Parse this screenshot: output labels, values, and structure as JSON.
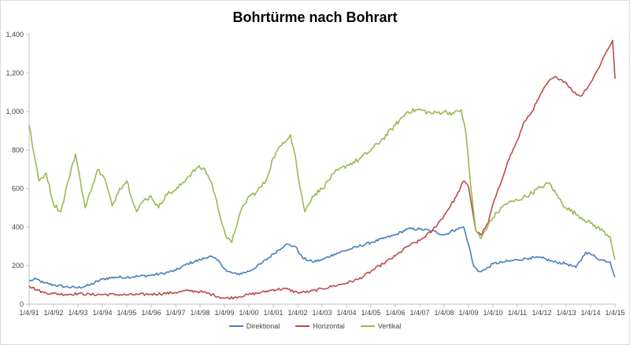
{
  "chart_data": {
    "type": "line",
    "title": "Bohrtürme nach Bohrart",
    "xlabel": "",
    "ylabel": "",
    "ylim": [
      0,
      1400
    ],
    "xlim": [
      "1991-01-04",
      "2015-01-04"
    ],
    "yticks": [
      {
        "value": 0,
        "label": "0"
      },
      {
        "value": 200,
        "label": "200"
      },
      {
        "value": 400,
        "label": "400"
      },
      {
        "value": 600,
        "label": "600"
      },
      {
        "value": 800,
        "label": "800"
      },
      {
        "value": 1000,
        "label": "1,000"
      },
      {
        "value": 1200,
        "label": "1,200"
      },
      {
        "value": 1400,
        "label": "1,400"
      }
    ],
    "xticks": [
      "1/4/91",
      "1/4/92",
      "1/4/93",
      "1/4/94",
      "1/4/95",
      "1/4/96",
      "1/4/97",
      "1/4/98",
      "1/4/99",
      "1/4/00",
      "1/4/01",
      "1/4/02",
      "1/4/03",
      "1/4/04",
      "1/4/05",
      "1/4/06",
      "1/4/07",
      "1/4/08",
      "1/4/09",
      "1/4/10",
      "1/4/11",
      "1/4/12",
      "1/4/13",
      "1/4/14",
      "1/4/15"
    ],
    "grid": false,
    "legend_position": "bottom",
    "series": [
      {
        "name": "Direktional",
        "color": "#4a7ebb",
        "points": [
          [
            1991.0,
            120
          ],
          [
            1991.3,
            130
          ],
          [
            1991.6,
            110
          ],
          [
            1992.0,
            100
          ],
          [
            1992.5,
            90
          ],
          [
            1993.0,
            85
          ],
          [
            1993.5,
            100
          ],
          [
            1994.0,
            130
          ],
          [
            1994.5,
            140
          ],
          [
            1995.0,
            140
          ],
          [
            1995.5,
            145
          ],
          [
            1996.0,
            150
          ],
          [
            1996.5,
            160
          ],
          [
            1997.0,
            175
          ],
          [
            1997.5,
            210
          ],
          [
            1998.0,
            230
          ],
          [
            1998.4,
            250
          ],
          [
            1998.8,
            220
          ],
          [
            1999.1,
            170
          ],
          [
            1999.5,
            155
          ],
          [
            2000.0,
            170
          ],
          [
            2000.5,
            210
          ],
          [
            2001.0,
            260
          ],
          [
            2001.5,
            310
          ],
          [
            2001.9,
            300
          ],
          [
            2002.2,
            240
          ],
          [
            2002.6,
            220
          ],
          [
            2003.0,
            230
          ],
          [
            2003.5,
            260
          ],
          [
            2004.0,
            280
          ],
          [
            2004.5,
            300
          ],
          [
            2005.0,
            320
          ],
          [
            2005.5,
            340
          ],
          [
            2006.0,
            360
          ],
          [
            2006.5,
            390
          ],
          [
            2007.0,
            390
          ],
          [
            2007.5,
            380
          ],
          [
            2008.0,
            360
          ],
          [
            2008.5,
            390
          ],
          [
            2008.8,
            400
          ],
          [
            2009.0,
            310
          ],
          [
            2009.2,
            200
          ],
          [
            2009.4,
            170
          ],
          [
            2009.7,
            180
          ],
          [
            2010.0,
            210
          ],
          [
            2010.5,
            220
          ],
          [
            2011.0,
            230
          ],
          [
            2011.5,
            240
          ],
          [
            2012.0,
            240
          ],
          [
            2012.5,
            220
          ],
          [
            2013.0,
            210
          ],
          [
            2013.4,
            190
          ],
          [
            2013.8,
            270
          ],
          [
            2014.0,
            260
          ],
          [
            2014.4,
            230
          ],
          [
            2014.8,
            220
          ],
          [
            2015.0,
            140
          ]
        ]
      },
      {
        "name": "Horizontal",
        "color": "#be4b48",
        "points": [
          [
            1991.0,
            95
          ],
          [
            1991.3,
            75
          ],
          [
            1991.6,
            60
          ],
          [
            1992.0,
            55
          ],
          [
            1992.5,
            50
          ],
          [
            1993.0,
            55
          ],
          [
            1993.5,
            50
          ],
          [
            1994.0,
            50
          ],
          [
            1994.5,
            50
          ],
          [
            1995.0,
            48
          ],
          [
            1995.5,
            50
          ],
          [
            1996.0,
            52
          ],
          [
            1996.5,
            55
          ],
          [
            1997.0,
            60
          ],
          [
            1997.5,
            70
          ],
          [
            1998.0,
            65
          ],
          [
            1998.5,
            50
          ],
          [
            1999.0,
            30
          ],
          [
            1999.4,
            35
          ],
          [
            2000.0,
            50
          ],
          [
            2000.5,
            60
          ],
          [
            2001.0,
            75
          ],
          [
            2001.5,
            80
          ],
          [
            2002.0,
            60
          ],
          [
            2002.5,
            65
          ],
          [
            2003.0,
            80
          ],
          [
            2003.5,
            95
          ],
          [
            2004.0,
            110
          ],
          [
            2004.5,
            130
          ],
          [
            2005.0,
            170
          ],
          [
            2005.5,
            210
          ],
          [
            2006.0,
            250
          ],
          [
            2006.5,
            300
          ],
          [
            2007.0,
            330
          ],
          [
            2007.5,
            380
          ],
          [
            2008.0,
            460
          ],
          [
            2008.5,
            560
          ],
          [
            2008.8,
            640
          ],
          [
            2009.0,
            610
          ],
          [
            2009.3,
            380
          ],
          [
            2009.5,
            360
          ],
          [
            2009.8,
            420
          ],
          [
            2010.0,
            520
          ],
          [
            2010.3,
            620
          ],
          [
            2010.6,
            740
          ],
          [
            2011.0,
            850
          ],
          [
            2011.3,
            950
          ],
          [
            2011.6,
            1000
          ],
          [
            2012.0,
            1100
          ],
          [
            2012.3,
            1160
          ],
          [
            2012.6,
            1180
          ],
          [
            2013.0,
            1150
          ],
          [
            2013.3,
            1100
          ],
          [
            2013.6,
            1080
          ],
          [
            2014.0,
            1150
          ],
          [
            2014.3,
            1220
          ],
          [
            2014.6,
            1300
          ],
          [
            2014.9,
            1370
          ],
          [
            2015.0,
            1170
          ]
        ]
      },
      {
        "name": "Vertikal",
        "color": "#98b954",
        "points": [
          [
            1991.0,
            930
          ],
          [
            1991.2,
            780
          ],
          [
            1991.4,
            640
          ],
          [
            1991.7,
            680
          ],
          [
            1992.0,
            520
          ],
          [
            1992.3,
            480
          ],
          [
            1992.6,
            640
          ],
          [
            1992.9,
            780
          ],
          [
            1993.1,
            640
          ],
          [
            1993.3,
            500
          ],
          [
            1993.6,
            620
          ],
          [
            1993.8,
            700
          ],
          [
            1994.1,
            650
          ],
          [
            1994.4,
            510
          ],
          [
            1994.7,
            600
          ],
          [
            1995.0,
            640
          ],
          [
            1995.4,
            480
          ],
          [
            1995.7,
            540
          ],
          [
            1996.0,
            560
          ],
          [
            1996.3,
            500
          ],
          [
            1996.6,
            570
          ],
          [
            1997.0,
            590
          ],
          [
            1997.5,
            660
          ],
          [
            1997.9,
            710
          ],
          [
            1998.2,
            700
          ],
          [
            1998.5,
            620
          ],
          [
            1998.8,
            470
          ],
          [
            1999.1,
            340
          ],
          [
            1999.3,
            320
          ],
          [
            1999.6,
            460
          ],
          [
            2000.0,
            560
          ],
          [
            2000.3,
            580
          ],
          [
            2000.7,
            640
          ],
          [
            2001.0,
            760
          ],
          [
            2001.4,
            840
          ],
          [
            2001.7,
            880
          ],
          [
            2001.9,
            770
          ],
          [
            2002.1,
            600
          ],
          [
            2002.3,
            480
          ],
          [
            2002.6,
            560
          ],
          [
            2003.0,
            600
          ],
          [
            2003.5,
            680
          ],
          [
            2004.0,
            720
          ],
          [
            2004.5,
            750
          ],
          [
            2005.0,
            800
          ],
          [
            2005.5,
            860
          ],
          [
            2006.0,
            930
          ],
          [
            2006.5,
            1000
          ],
          [
            2007.0,
            1010
          ],
          [
            2007.5,
            990
          ],
          [
            2008.0,
            1000
          ],
          [
            2008.4,
            990
          ],
          [
            2008.7,
            1010
          ],
          [
            2008.9,
            880
          ],
          [
            2009.1,
            600
          ],
          [
            2009.3,
            380
          ],
          [
            2009.5,
            340
          ],
          [
            2009.8,
            410
          ],
          [
            2010.0,
            450
          ],
          [
            2010.5,
            520
          ],
          [
            2011.0,
            540
          ],
          [
            2011.5,
            570
          ],
          [
            2012.0,
            610
          ],
          [
            2012.3,
            630
          ],
          [
            2012.7,
            550
          ],
          [
            2013.0,
            500
          ],
          [
            2013.5,
            460
          ],
          [
            2014.0,
            420
          ],
          [
            2014.5,
            380
          ],
          [
            2014.8,
            350
          ],
          [
            2015.0,
            230
          ]
        ]
      }
    ]
  }
}
